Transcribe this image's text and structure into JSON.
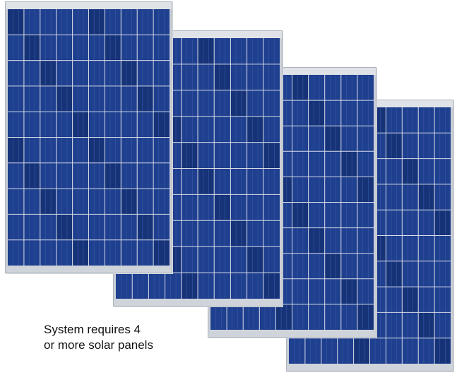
{
  "scene": {
    "description_icons": [
      "solar-panel-icon",
      "solar-panel-icon",
      "solar-panel-icon",
      "solar-panel-icon"
    ],
    "panel_count": 4,
    "colors": {
      "background": "#ffffff",
      "frame": "#c9ced6",
      "cell": "#1f3f8f",
      "cell_dark": "#163378",
      "grid_line": "#d7dde8"
    }
  },
  "caption": {
    "line1": "System requires 4",
    "line2": "or more solar panels"
  }
}
